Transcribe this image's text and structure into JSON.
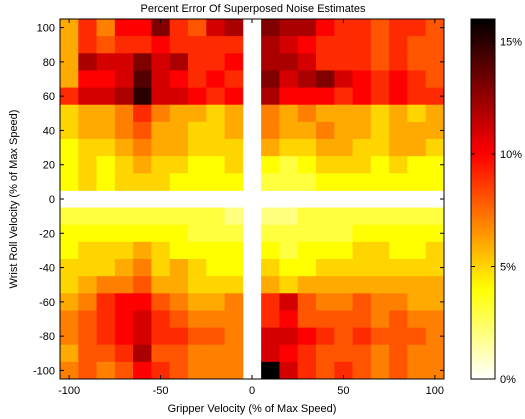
{
  "chart_data": {
    "type": "heatmap",
    "title": "Percent Error Of Superposed Noise Estimates",
    "xlabel": "Gripper Velocity (% of Max Speed)",
    "ylabel": "Wrist Roll Velocity (% of Max Speed)",
    "x_range": [
      -100,
      100
    ],
    "y_range": [
      -100,
      100
    ],
    "cell_size": 10,
    "x_ticks": [
      -100,
      -50,
      0,
      50,
      100
    ],
    "y_ticks": [
      -100,
      -80,
      -60,
      -40,
      -20,
      0,
      20,
      40,
      60,
      80,
      100
    ],
    "colorbar": {
      "colormap": "hot (inverted)",
      "range": [
        0,
        16
      ],
      "tick_values": [
        0,
        5,
        10,
        15
      ],
      "tick_labels": [
        "0%",
        "5%",
        "10%",
        "15%"
      ]
    },
    "empty_row_y": 0,
    "empty_column_x": 0,
    "rows_y": [
      100,
      90,
      80,
      70,
      60,
      50,
      40,
      30,
      20,
      10,
      0,
      -10,
      -20,
      -30,
      -40,
      -50,
      -60,
      -70,
      -80,
      -90,
      -100
    ],
    "columns_x": [
      -100,
      -90,
      -80,
      -70,
      -60,
      -50,
      -40,
      -30,
      -20,
      -10,
      0,
      10,
      20,
      30,
      40,
      50,
      60,
      70,
      80,
      90,
      100
    ],
    "values_percent": [
      [
        6,
        9,
        7,
        10,
        10,
        13,
        9,
        8,
        11,
        12,
        null,
        13,
        12,
        12,
        10,
        9,
        9,
        8,
        9,
        9,
        8
      ],
      [
        6,
        9,
        8,
        9,
        9,
        10,
        9,
        9,
        9,
        9,
        null,
        12,
        11,
        10,
        9,
        9,
        9,
        8,
        9,
        8,
        8
      ],
      [
        6,
        12,
        11,
        11,
        13,
        11,
        12,
        9,
        9,
        10,
        null,
        12,
        12,
        11,
        9,
        9,
        9,
        8,
        9,
        8,
        8
      ],
      [
        6,
        10,
        10,
        11,
        14,
        11,
        10,
        9,
        10,
        9,
        null,
        13,
        11,
        12,
        13,
        11,
        10,
        9,
        10,
        9,
        8
      ],
      [
        9,
        11,
        11,
        12,
        15,
        11,
        11,
        10,
        9,
        10,
        null,
        12,
        10,
        10,
        10,
        9,
        10,
        9,
        10,
        9,
        9
      ],
      [
        5,
        6,
        6,
        7,
        9,
        7,
        6,
        6,
        5,
        6,
        null,
        7,
        6,
        7,
        6,
        6,
        6,
        5,
        6,
        5,
        6
      ],
      [
        5,
        6,
        6,
        7,
        8,
        6,
        6,
        5,
        5,
        6,
        null,
        7,
        6,
        6,
        7,
        6,
        6,
        5,
        6,
        6,
        6
      ],
      [
        4,
        5,
        5,
        6,
        7,
        6,
        6,
        5,
        5,
        5,
        null,
        6,
        5,
        5,
        6,
        6,
        5,
        5,
        6,
        6,
        5
      ],
      [
        4,
        5,
        4,
        5,
        6,
        5,
        5,
        4,
        4,
        5,
        null,
        4,
        3,
        4,
        5,
        5,
        5,
        4,
        5,
        4,
        4
      ],
      [
        4,
        5,
        4,
        5,
        5,
        5,
        4,
        4,
        4,
        4,
        null,
        3,
        3,
        3,
        4,
        4,
        4,
        4,
        4,
        4,
        4
      ],
      [
        null,
        null,
        null,
        null,
        null,
        null,
        null,
        null,
        null,
        null,
        null,
        null,
        null,
        null,
        null,
        null,
        null,
        null,
        null,
        null,
        null
      ],
      [
        3,
        3,
        3,
        3,
        3,
        3,
        3,
        3,
        3,
        2,
        null,
        2,
        2,
        3,
        3,
        3,
        3,
        3,
        3,
        3,
        3
      ],
      [
        4,
        4,
        4,
        4,
        4,
        4,
        4,
        3,
        3,
        3,
        null,
        3,
        3,
        3,
        3,
        3,
        4,
        4,
        4,
        4,
        4
      ],
      [
        4,
        5,
        5,
        5,
        6,
        5,
        4,
        4,
        4,
        4,
        null,
        4,
        3,
        4,
        4,
        4,
        5,
        5,
        4,
        4,
        5
      ],
      [
        5,
        5,
        5,
        6,
        7,
        5,
        6,
        5,
        4,
        4,
        null,
        5,
        4,
        4,
        5,
        5,
        5,
        5,
        5,
        5,
        5
      ],
      [
        5,
        6,
        7,
        7,
        8,
        6,
        6,
        5,
        5,
        5,
        null,
        6,
        5,
        6,
        6,
        6,
        6,
        6,
        6,
        6,
        6
      ],
      [
        6,
        7,
        9,
        10,
        10,
        8,
        7,
        6,
        6,
        7,
        null,
        9,
        11,
        8,
        7,
        7,
        8,
        7,
        7,
        6,
        6
      ],
      [
        7,
        8,
        9,
        10,
        11,
        9,
        8,
        7,
        7,
        7,
        null,
        9,
        10,
        8,
        8,
        8,
        8,
        7,
        8,
        7,
        7
      ],
      [
        7,
        8,
        9,
        10,
        11,
        9,
        9,
        8,
        8,
        7,
        null,
        11,
        11,
        10,
        9,
        8,
        9,
        8,
        8,
        8,
        7
      ],
      [
        6,
        8,
        8,
        9,
        12,
        8,
        8,
        7,
        7,
        7,
        null,
        11,
        10,
        9,
        8,
        8,
        8,
        7,
        8,
        7,
        7
      ],
      [
        7,
        8,
        7,
        8,
        10,
        9,
        8,
        7,
        7,
        7,
        null,
        16,
        11,
        9,
        8,
        9,
        8,
        7,
        8,
        7,
        7
      ]
    ]
  }
}
